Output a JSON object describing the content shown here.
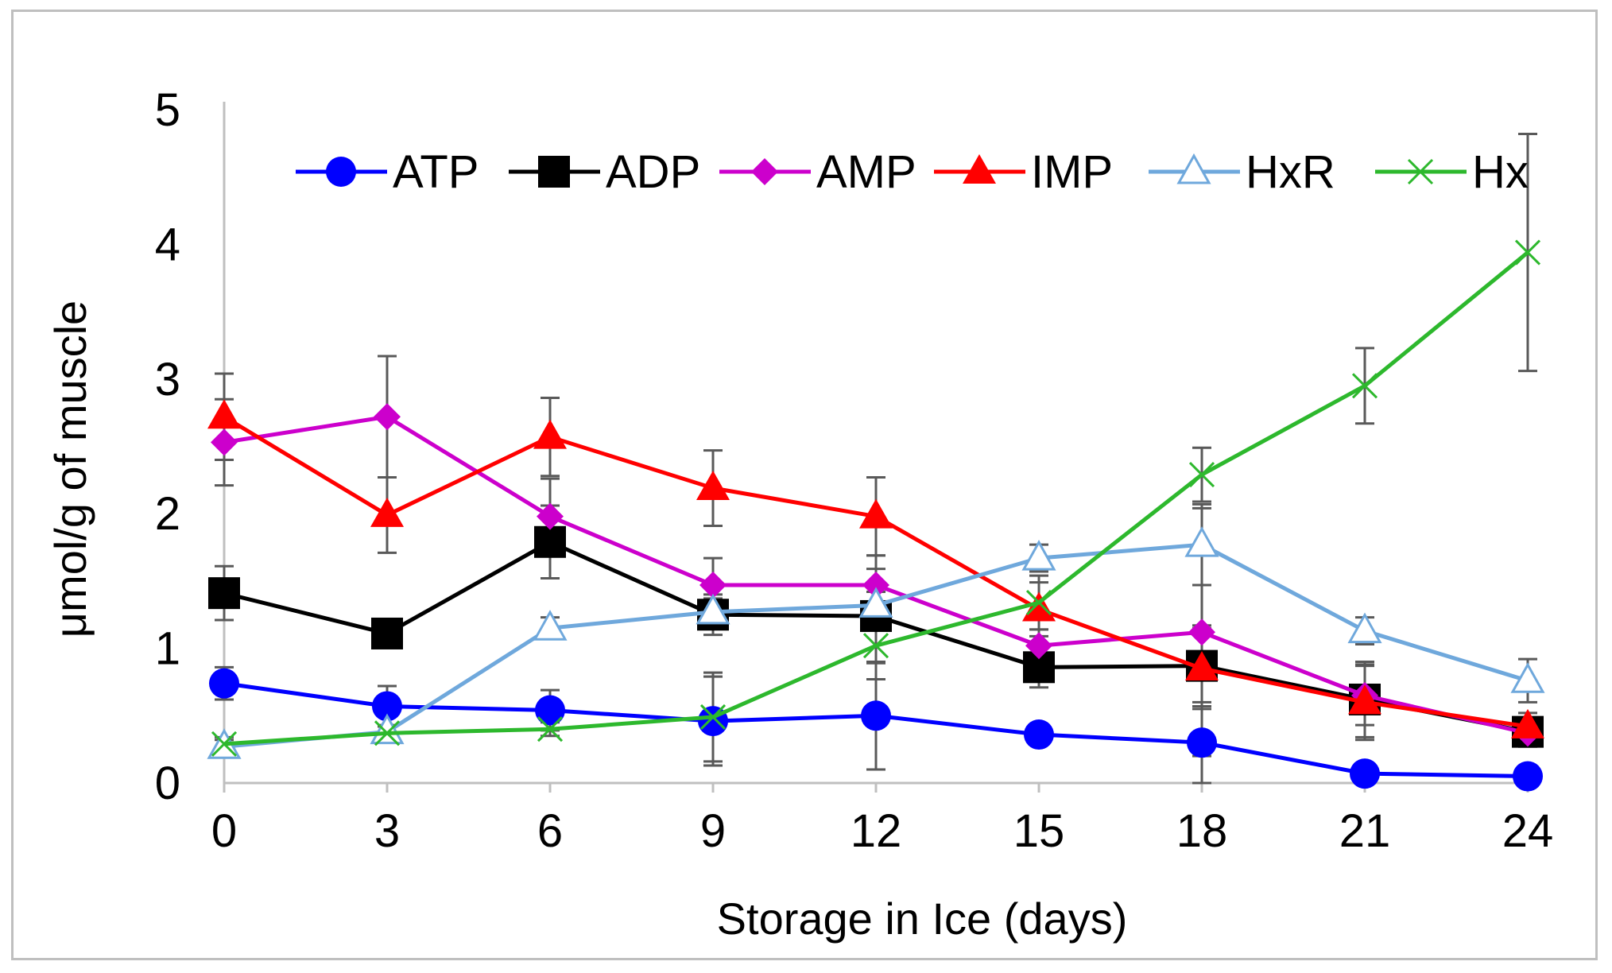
{
  "chart_data": {
    "type": "line",
    "title": "",
    "xlabel": "Storage in Ice (days)",
    "ylabel": "μmol/g of muscle",
    "x": [
      0,
      3,
      6,
      9,
      12,
      15,
      18,
      21,
      24
    ],
    "x_tick_labels": [
      "0",
      "3",
      "6",
      "9",
      "12",
      "15",
      "18",
      "21",
      "24"
    ],
    "y_tick_labels": [
      "0",
      "1",
      "2",
      "3",
      "4",
      "5"
    ],
    "xlim": [
      0,
      24
    ],
    "ylim": [
      0,
      5
    ],
    "grid": false,
    "legend_position": "top",
    "series": [
      {
        "name": "ATP",
        "color": "#0000ff",
        "marker": "circle",
        "values": [
          0.74,
          0.57,
          0.54,
          0.46,
          0.5,
          0.36,
          0.3,
          0.07,
          0.05
        ],
        "errors": [
          0.12,
          0.15,
          0.15,
          0.33,
          0.4,
          0.05,
          0.3,
          0.03,
          0.02
        ]
      },
      {
        "name": "ADP",
        "color": "#000000",
        "marker": "square",
        "values": [
          1.41,
          1.11,
          1.79,
          1.25,
          1.24,
          0.86,
          0.87,
          0.62,
          0.38
        ],
        "errors": [
          0.2,
          0.07,
          0.27,
          0.15,
          0.35,
          0.15,
          0.3,
          0.28,
          0.1
        ]
      },
      {
        "name": "AMP",
        "color": "#cc00cc",
        "marker": "diamond",
        "values": [
          2.53,
          2.72,
          1.98,
          1.47,
          1.47,
          1.02,
          1.12,
          0.65,
          0.37
        ],
        "errors": [
          0.32,
          0.45,
          0.28,
          0.2,
          0.22,
          0.12,
          0.92,
          0.22,
          0.1
        ]
      },
      {
        "name": "IMP",
        "color": "#ff0000",
        "marker": "triangle",
        "values": [
          2.72,
          1.99,
          2.57,
          2.19,
          1.98,
          1.29,
          0.85,
          0.6,
          0.42
        ],
        "errors": [
          0.32,
          0.28,
          0.29,
          0.28,
          0.29,
          0.2,
          0.3,
          0.28,
          0.1
        ]
      },
      {
        "name": "HxR",
        "color": "#6fa8dc",
        "marker": "triangle-open",
        "values": [
          0.27,
          0.38,
          1.15,
          1.27,
          1.32,
          1.67,
          1.77,
          1.13,
          0.76
        ],
        "errors": [
          0.05,
          0.05,
          0.08,
          0.1,
          0.1,
          0.1,
          0.3,
          0.1,
          0.16
        ]
      },
      {
        "name": "Hx",
        "color": "#2db82d",
        "marker": "x",
        "values": [
          0.29,
          0.37,
          0.4,
          0.49,
          1.02,
          1.34,
          2.29,
          2.95,
          3.94
        ],
        "errors": [
          0.05,
          0.05,
          0.05,
          0.33,
          0.25,
          0.2,
          0.2,
          0.28,
          0.88
        ]
      }
    ]
  }
}
